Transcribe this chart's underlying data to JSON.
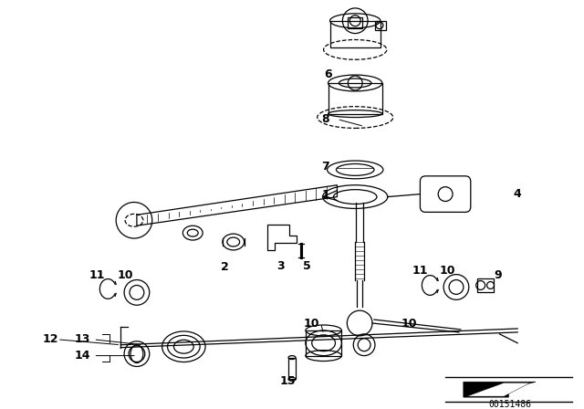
{
  "bg_color": "#ffffff",
  "part_number": "00151486",
  "line_color": "#000000",
  "text_color": "#000000",
  "fig_width": 6.4,
  "fig_height": 4.48,
  "dpi": 100
}
